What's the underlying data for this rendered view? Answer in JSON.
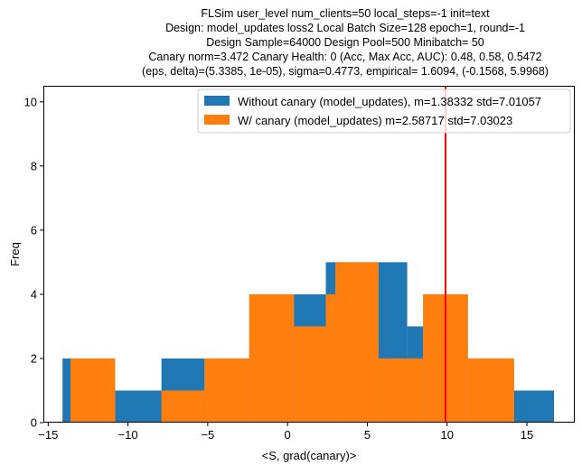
{
  "chart_data": {
    "type": "bar",
    "title_lines": [
      "FLSim user_level num_clients=50 local_steps=-1 init=text",
      "Design: model_updates loss2 Local Batch Size=128 epoch=1, round=-1",
      "Design Sample=64000 Design Pool=500 Minibatch= 50",
      "Canary norm=3.472 Canary Health: 0 (Acc, Max Acc, AUC): 0.48, 0.58, 0.5472",
      "(eps, delta)=(5.3385, 1e-05), sigma=0.4773, empirical= 1.6094, (-0.1568, 5.9968)"
    ],
    "xlabel": "<S, grad(canary)>",
    "ylabel": "Freq",
    "xlim": [
      -15.3,
      18.0
    ],
    "ylim": [
      0,
      10.5
    ],
    "xticks": [
      -15,
      -10,
      -5,
      0,
      5,
      10,
      15
    ],
    "xtick_labels": [
      "−15",
      "−10",
      "−5",
      "0",
      "5",
      "10",
      "15"
    ],
    "yticks": [
      0,
      2,
      4,
      6,
      8,
      10
    ],
    "ytick_labels": [
      "0",
      "2",
      "4",
      "6",
      "8",
      "10"
    ],
    "grid": false,
    "legend_position": "top-right",
    "vline": {
      "x": 9.9,
      "color": "#ff0000"
    },
    "series": [
      {
        "name": "Without canary (model_updates), m=1.38332 std=7.01057",
        "color": "#1f77b4",
        "bins": [
          {
            "x0": -14.1,
            "x1": -13.6,
            "count": 2
          },
          {
            "x0": -13.6,
            "x1": -10.8,
            "count": 0
          },
          {
            "x0": -10.8,
            "x1": -7.9,
            "count": 1
          },
          {
            "x0": -7.9,
            "x1": -5.2,
            "count": 2
          },
          {
            "x0": -5.2,
            "x1": -2.4,
            "count": 2
          },
          {
            "x0": -2.4,
            "x1": 0.4,
            "count": 4
          },
          {
            "x0": 0.4,
            "x1": 2.4,
            "count": 4
          },
          {
            "x0": 2.4,
            "x1": 3.0,
            "count": 5
          },
          {
            "x0": 3.0,
            "x1": 5.7,
            "count": 5
          },
          {
            "x0": 5.7,
            "x1": 7.5,
            "count": 5
          },
          {
            "x0": 7.5,
            "x1": 8.5,
            "count": 3
          },
          {
            "x0": 8.5,
            "x1": 11.3,
            "count": 4
          },
          {
            "x0": 11.3,
            "x1": 14.2,
            "count": 2
          },
          {
            "x0": 14.2,
            "x1": 16.7,
            "count": 1
          }
        ]
      },
      {
        "name": "W/ canary (model_updates) m=2.58717 std=7.03023",
        "color": "#ff7f0e",
        "bins": [
          {
            "x0": -13.6,
            "x1": -10.8,
            "count": 2
          },
          {
            "x0": -10.8,
            "x1": -7.9,
            "count": 0
          },
          {
            "x0": -7.9,
            "x1": -5.2,
            "count": 1
          },
          {
            "x0": -5.2,
            "x1": -2.4,
            "count": 2
          },
          {
            "x0": -2.4,
            "x1": 0.4,
            "count": 4
          },
          {
            "x0": 0.4,
            "x1": 2.4,
            "count": 3
          },
          {
            "x0": 2.4,
            "x1": 3.0,
            "count": 4
          },
          {
            "x0": 3.0,
            "x1": 5.7,
            "count": 5
          },
          {
            "x0": 5.7,
            "x1": 7.5,
            "count": 2
          },
          {
            "x0": 7.5,
            "x1": 8.5,
            "count": 2
          },
          {
            "x0": 8.5,
            "x1": 11.3,
            "count": 4
          },
          {
            "x0": 11.3,
            "x1": 14.2,
            "count": 2
          }
        ]
      }
    ]
  }
}
